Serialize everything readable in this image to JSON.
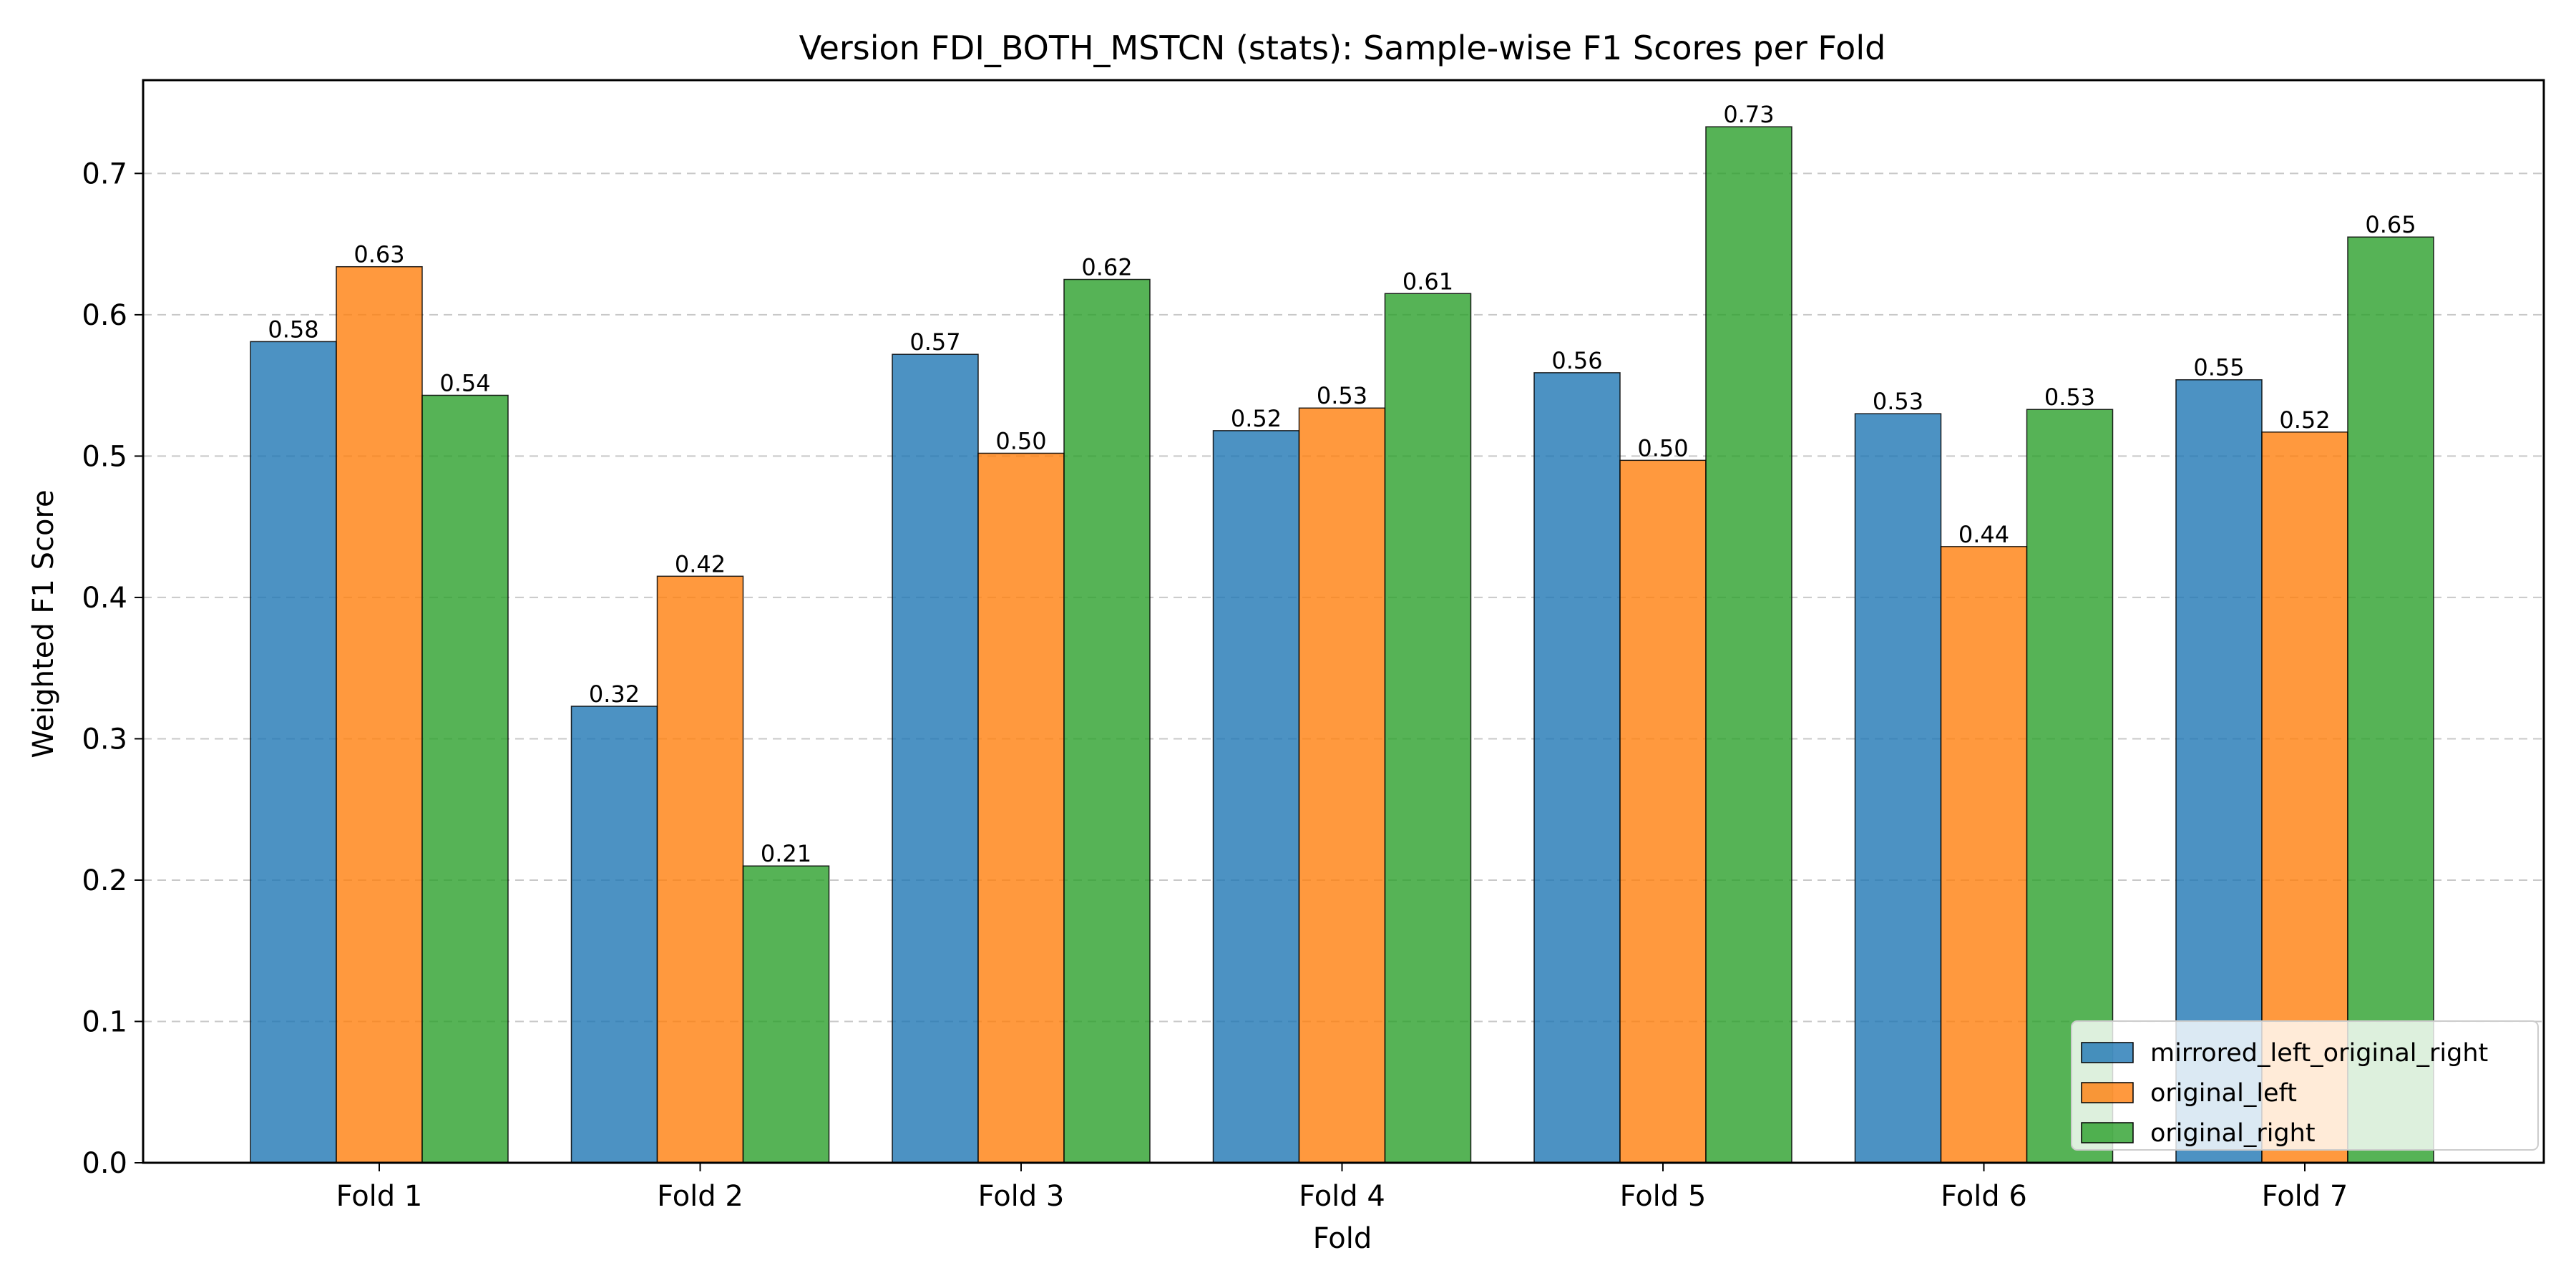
{
  "chart_data": {
    "type": "bar",
    "title": "Version FDI_BOTH_MSTCN (stats): Sample-wise F1 Scores per Fold",
    "xlabel": "Fold",
    "ylabel": "Weighted F1 Score",
    "categories": [
      "Fold 1",
      "Fold 2",
      "Fold 3",
      "Fold 4",
      "Fold 5",
      "Fold 6",
      "Fold 7"
    ],
    "series": [
      {
        "name": "mirrored_left_original_right",
        "color": "#1f77b4",
        "values": [
          0.581,
          0.323,
          0.572,
          0.518,
          0.559,
          0.53,
          0.554
        ],
        "labels": [
          "0.58",
          "0.32",
          "0.57",
          "0.52",
          "0.56",
          "0.53",
          "0.55"
        ]
      },
      {
        "name": "original_left",
        "color": "#ff7f0e",
        "values": [
          0.634,
          0.415,
          0.502,
          0.534,
          0.497,
          0.436,
          0.517
        ],
        "labels": [
          "0.63",
          "0.42",
          "0.50",
          "0.53",
          "0.50",
          "0.44",
          "0.52"
        ]
      },
      {
        "name": "original_right",
        "color": "#2ca02c",
        "values": [
          0.543,
          0.21,
          0.625,
          0.615,
          0.733,
          0.533,
          0.655
        ],
        "labels": [
          "0.54",
          "0.21",
          "0.62",
          "0.61",
          "0.73",
          "0.53",
          "0.65"
        ]
      }
    ],
    "ylim": [
      0,
      0.766
    ],
    "yticks": [
      0.0,
      0.1,
      0.2,
      0.3,
      0.4,
      0.5,
      0.6,
      0.7
    ],
    "ytick_labels": [
      "0.0",
      "0.1",
      "0.2",
      "0.3",
      "0.4",
      "0.5",
      "0.6",
      "0.7"
    ],
    "grid": "y-dashed",
    "legend_position": "lower right",
    "bar_alpha": 0.8
  }
}
